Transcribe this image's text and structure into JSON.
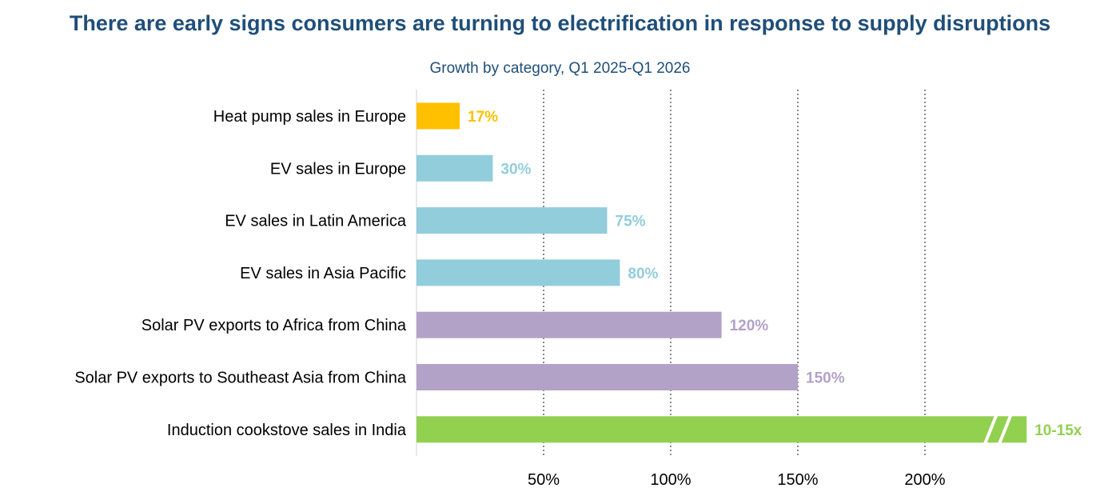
{
  "title": "There are early signs consumers are turning to electrification in response to supply disruptions",
  "subtitle": "Growth by category, Q1 2025-Q1 2026",
  "chart_data": {
    "type": "bar",
    "orientation": "horizontal",
    "title": "There are early signs consumers are turning to electrification in response to supply disruptions",
    "subtitle": "Growth by category, Q1 2025-Q1 2026",
    "categories": [
      "Heat pump sales in Europe",
      "EV sales in Europe",
      "EV sales in Latin America",
      "EV sales in Asia Pacific",
      "Solar PV exports to Africa from China",
      "Solar PV exports to Southeast Asia from China",
      "Induction cookstove sales in India"
    ],
    "values": [
      17,
      30,
      75,
      80,
      120,
      150,
      240
    ],
    "value_labels": [
      "17%",
      "30%",
      "75%",
      "80%",
      "120%",
      "150%",
      "10-15x"
    ],
    "colors": [
      "#ffc000",
      "#92cddc",
      "#92cddc",
      "#92cddc",
      "#b3a2c7",
      "#b3a2c7",
      "#92d050"
    ],
    "broken_axis_bar_index": 6,
    "xlim": [
      0,
      250
    ],
    "xticks": [
      50,
      100,
      150,
      200
    ],
    "xtick_labels": [
      "50%",
      "100%",
      "150%",
      "200%"
    ],
    "grid": "vertical dotted",
    "legend": "none"
  }
}
